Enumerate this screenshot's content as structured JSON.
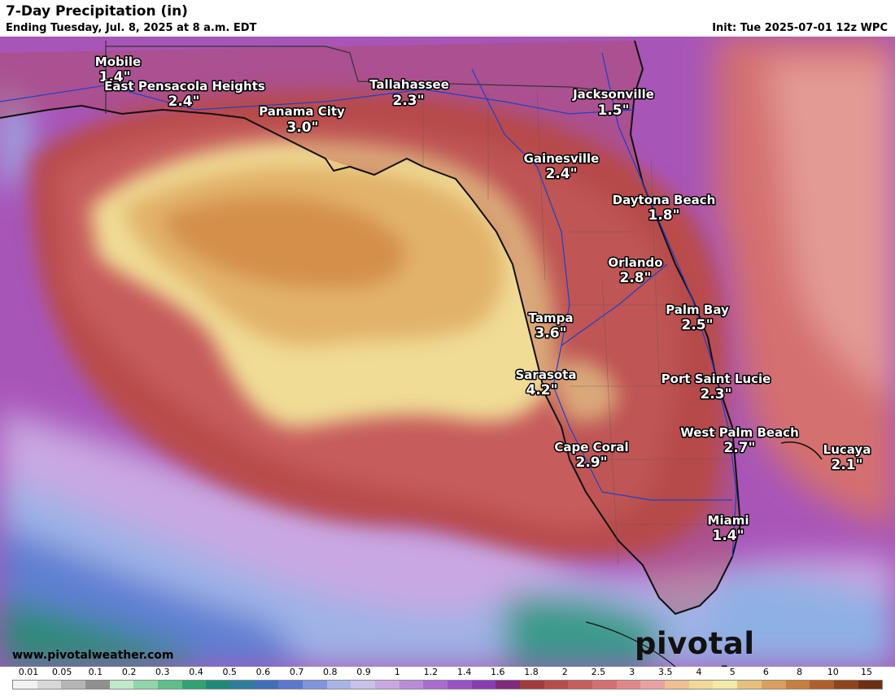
{
  "header": {
    "title": "7-Day Precipitation (in)",
    "subtitle": "Ending Tuesday, Jul. 8, 2025 at 8 a.m. EDT",
    "init": "Init: Tue 2025-07-01 12z WPC"
  },
  "cities": [
    {
      "name": "Mobile",
      "value": "1.4\""
    },
    {
      "name": "East Pensacola Heights",
      "value": "2.4\""
    },
    {
      "name": "Tallahassee",
      "value": "2.3\""
    },
    {
      "name": "Panama City",
      "value": "3.0\""
    },
    {
      "name": "Jacksonville",
      "value": "1.5\""
    },
    {
      "name": "Gainesville",
      "value": "2.4\""
    },
    {
      "name": "Daytona Beach",
      "value": "1.8\""
    },
    {
      "name": "Orlando",
      "value": "2.8\""
    },
    {
      "name": "Palm Bay",
      "value": "2.5\""
    },
    {
      "name": "Tampa",
      "value": "3.6\""
    },
    {
      "name": "Sarasota",
      "value": "4.2\""
    },
    {
      "name": "Port Saint Lucie",
      "value": "2.3\""
    },
    {
      "name": "West Palm Beach",
      "value": "2.7\""
    },
    {
      "name": "Cape Coral",
      "value": "2.9\""
    },
    {
      "name": "Lucaya",
      "value": "2.1\""
    },
    {
      "name": "Miami",
      "value": "1.4\""
    }
  ],
  "footer": {
    "website": "www.pivotalweather.com",
    "logo_text": "pivotal weather"
  },
  "legend": {
    "ticks": [
      "0.01",
      "0.05",
      "0.1",
      "0.2",
      "0.3",
      "0.4",
      "0.5",
      "0.6",
      "0.7",
      "0.8",
      "0.9",
      "1",
      "1.2",
      "1.4",
      "1.6",
      "1.8",
      "2",
      "2.5",
      "3",
      "3.5",
      "4",
      "5",
      "6",
      "8",
      "10",
      "15"
    ],
    "colors": [
      "#f2f2f2",
      "#d8d8d8",
      "#b5b5b5",
      "#8f8f8f",
      "#bdeac9",
      "#8fd6a8",
      "#5fbf8a",
      "#2fa370",
      "#1e8a78",
      "#2d7e9c",
      "#3f6fb8",
      "#5b78d0",
      "#7f95dd",
      "#a8b4e6",
      "#c8c2ea",
      "#c7a8e0",
      "#b98bd9",
      "#a96dcf",
      "#9a52c4",
      "#8a3bb4",
      "#7f2a7a",
      "#a33b3b",
      "#b94b4b",
      "#c85d5d",
      "#d67070",
      "#e08888",
      "#e8a2a2",
      "#f0c090",
      "#f2d99a",
      "#f3e9a8",
      "#e8c07c",
      "#d9a05f",
      "#c77e3f",
      "#b05f2a",
      "#8e451c",
      "#6e3012"
    ]
  }
}
